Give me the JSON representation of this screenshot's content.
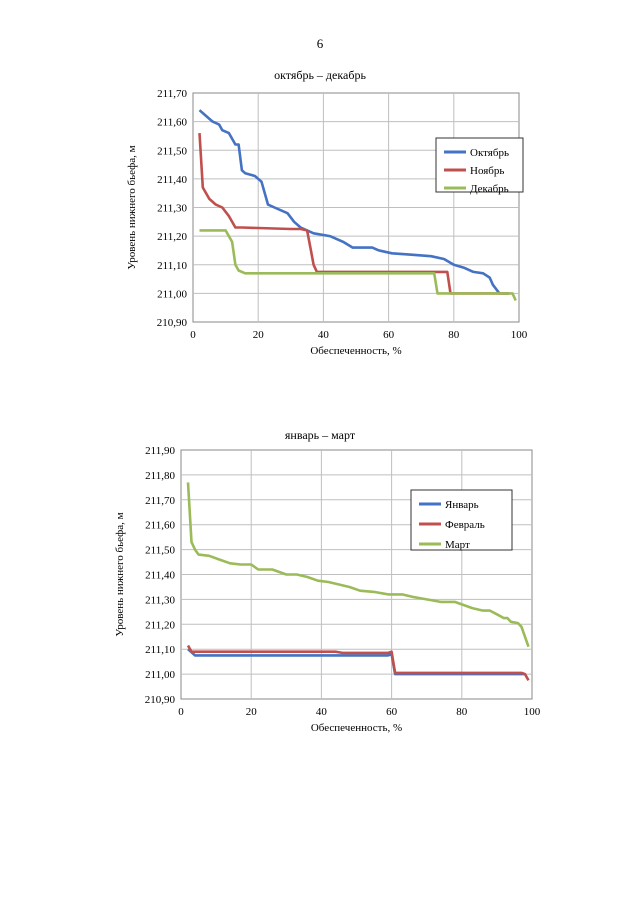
{
  "page": {
    "number": "6"
  },
  "chart_data": [
    {
      "type": "line",
      "title": "октябрь – декабрь",
      "xlabel": "Обеспеченность, %",
      "ylabel": "Уровень нижнего бьефа, м",
      "xlim": [
        0,
        100
      ],
      "ylim": [
        210.9,
        211.7
      ],
      "xticks": [
        "0",
        "20",
        "40",
        "60",
        "80",
        "100"
      ],
      "yticks": [
        "210,90",
        "211,00",
        "211,10",
        "211,20",
        "211,30",
        "211,40",
        "211,50",
        "211,60",
        "211,70"
      ],
      "grid": true,
      "legend_position": "right",
      "series": [
        {
          "name": "Октябрь",
          "color": "#4472C4",
          "points": [
            [
              2,
              211.64
            ],
            [
              4,
              211.62
            ],
            [
              6,
              211.6
            ],
            [
              8,
              211.59
            ],
            [
              9,
              211.57
            ],
            [
              11,
              211.56
            ],
            [
              13,
              211.52
            ],
            [
              14,
              211.52
            ],
            [
              15,
              211.43
            ],
            [
              16,
              211.42
            ],
            [
              19,
              211.41
            ],
            [
              21,
              211.39
            ],
            [
              23,
              211.31
            ],
            [
              25,
              211.3
            ],
            [
              29,
              211.28
            ],
            [
              31,
              211.25
            ],
            [
              33,
              211.23
            ],
            [
              37,
              211.21
            ],
            [
              42,
              211.2
            ],
            [
              46,
              211.18
            ],
            [
              49,
              211.16
            ],
            [
              55,
              211.16
            ],
            [
              57,
              211.15
            ],
            [
              61,
              211.14
            ],
            [
              67,
              211.135
            ],
            [
              73,
              211.13
            ],
            [
              77,
              211.12
            ],
            [
              80,
              211.1
            ],
            [
              83,
              211.09
            ],
            [
              86,
              211.075
            ],
            [
              89,
              211.07
            ],
            [
              91,
              211.055
            ],
            [
              92,
              211.03
            ],
            [
              94,
              211.0
            ],
            [
              97,
              211.0
            ]
          ]
        },
        {
          "name": "Ноябрь",
          "color": "#C0504D",
          "points": [
            [
              2,
              211.56
            ],
            [
              3,
              211.37
            ],
            [
              5,
              211.33
            ],
            [
              7,
              211.31
            ],
            [
              9,
              211.3
            ],
            [
              11,
              211.27
            ],
            [
              13,
              211.23
            ],
            [
              15,
              211.23
            ],
            [
              30,
              211.225
            ],
            [
              33,
              211.225
            ],
            [
              35,
              211.22
            ],
            [
              36,
              211.16
            ],
            [
              37,
              211.1
            ],
            [
              38,
              211.075
            ],
            [
              46,
              211.075
            ],
            [
              60,
              211.075
            ],
            [
              76,
              211.075
            ],
            [
              78,
              211.075
            ],
            [
              79,
              211.0
            ],
            [
              97,
              211.0
            ]
          ]
        },
        {
          "name": "Декабрь",
          "color": "#9BBB59",
          "points": [
            [
              2,
              211.22
            ],
            [
              10,
              211.22
            ],
            [
              12,
              211.18
            ],
            [
              13,
              211.1
            ],
            [
              14,
              211.08
            ],
            [
              16,
              211.07
            ],
            [
              30,
              211.07
            ],
            [
              50,
              211.07
            ],
            [
              70,
              211.07
            ],
            [
              74,
              211.07
            ],
            [
              75,
              211.0
            ],
            [
              96,
              211.0
            ],
            [
              98,
              211.0
            ],
            [
              99,
              210.975
            ]
          ]
        }
      ]
    },
    {
      "type": "line",
      "title": "январь – март",
      "xlabel": "Обеспеченность, %",
      "ylabel": "Уровень нижнего бьефа, м",
      "xlim": [
        0,
        100
      ],
      "ylim": [
        210.9,
        211.9
      ],
      "xticks": [
        "0",
        "20",
        "40",
        "60",
        "80",
        "100"
      ],
      "yticks": [
        "210,90",
        "211,00",
        "211,10",
        "211,20",
        "211,30",
        "211,40",
        "211,50",
        "211,60",
        "211,70",
        "211,80",
        "211,90"
      ],
      "grid": true,
      "legend_position": "top-right",
      "series": [
        {
          "name": "Январь",
          "color": "#4472C4",
          "points": [
            [
              2,
              211.1
            ],
            [
              4,
              211.075
            ],
            [
              20,
              211.075
            ],
            [
              40,
              211.075
            ],
            [
              59,
              211.075
            ],
            [
              60,
              211.08
            ],
            [
              61,
              211.0
            ],
            [
              62,
              211.0
            ],
            [
              80,
              211.0
            ],
            [
              98,
              211.0
            ]
          ]
        },
        {
          "name": "Февраль",
          "color": "#C0504D",
          "points": [
            [
              2,
              211.115
            ],
            [
              3,
              211.09
            ],
            [
              20,
              211.09
            ],
            [
              44,
              211.09
            ],
            [
              46,
              211.085
            ],
            [
              59,
              211.085
            ],
            [
              60,
              211.09
            ],
            [
              61,
              211.005
            ],
            [
              62,
              211.005
            ],
            [
              80,
              211.005
            ],
            [
              97,
              211.005
            ],
            [
              98,
              211.0
            ],
            [
              99,
              210.975
            ]
          ]
        },
        {
          "name": "Март",
          "color": "#9BBB59",
          "points": [
            [
              2,
              211.77
            ],
            [
              3,
              211.53
            ],
            [
              4,
              211.5
            ],
            [
              5,
              211.48
            ],
            [
              8,
              211.475
            ],
            [
              11,
              211.46
            ],
            [
              14,
              211.445
            ],
            [
              17,
              211.44
            ],
            [
              20,
              211.44
            ],
            [
              22,
              211.42
            ],
            [
              26,
              211.42
            ],
            [
              30,
              211.4
            ],
            [
              33,
              211.4
            ],
            [
              36,
              211.39
            ],
            [
              39,
              211.375
            ],
            [
              42,
              211.37
            ],
            [
              45,
              211.36
            ],
            [
              48,
              211.35
            ],
            [
              51,
              211.335
            ],
            [
              55,
              211.33
            ],
            [
              59,
              211.32
            ],
            [
              63,
              211.32
            ],
            [
              66,
              211.31
            ],
            [
              70,
              211.3
            ],
            [
              74,
              211.29
            ],
            [
              78,
              211.29
            ],
            [
              81,
              211.275
            ],
            [
              83,
              211.265
            ],
            [
              86,
              211.255
            ],
            [
              88,
              211.255
            ],
            [
              90,
              211.24
            ],
            [
              92,
              211.225
            ],
            [
              93,
              211.225
            ],
            [
              94,
              211.21
            ],
            [
              96,
              211.205
            ],
            [
              97,
              211.19
            ],
            [
              98,
              211.15
            ],
            [
              99,
              211.11
            ]
          ]
        }
      ]
    }
  ]
}
